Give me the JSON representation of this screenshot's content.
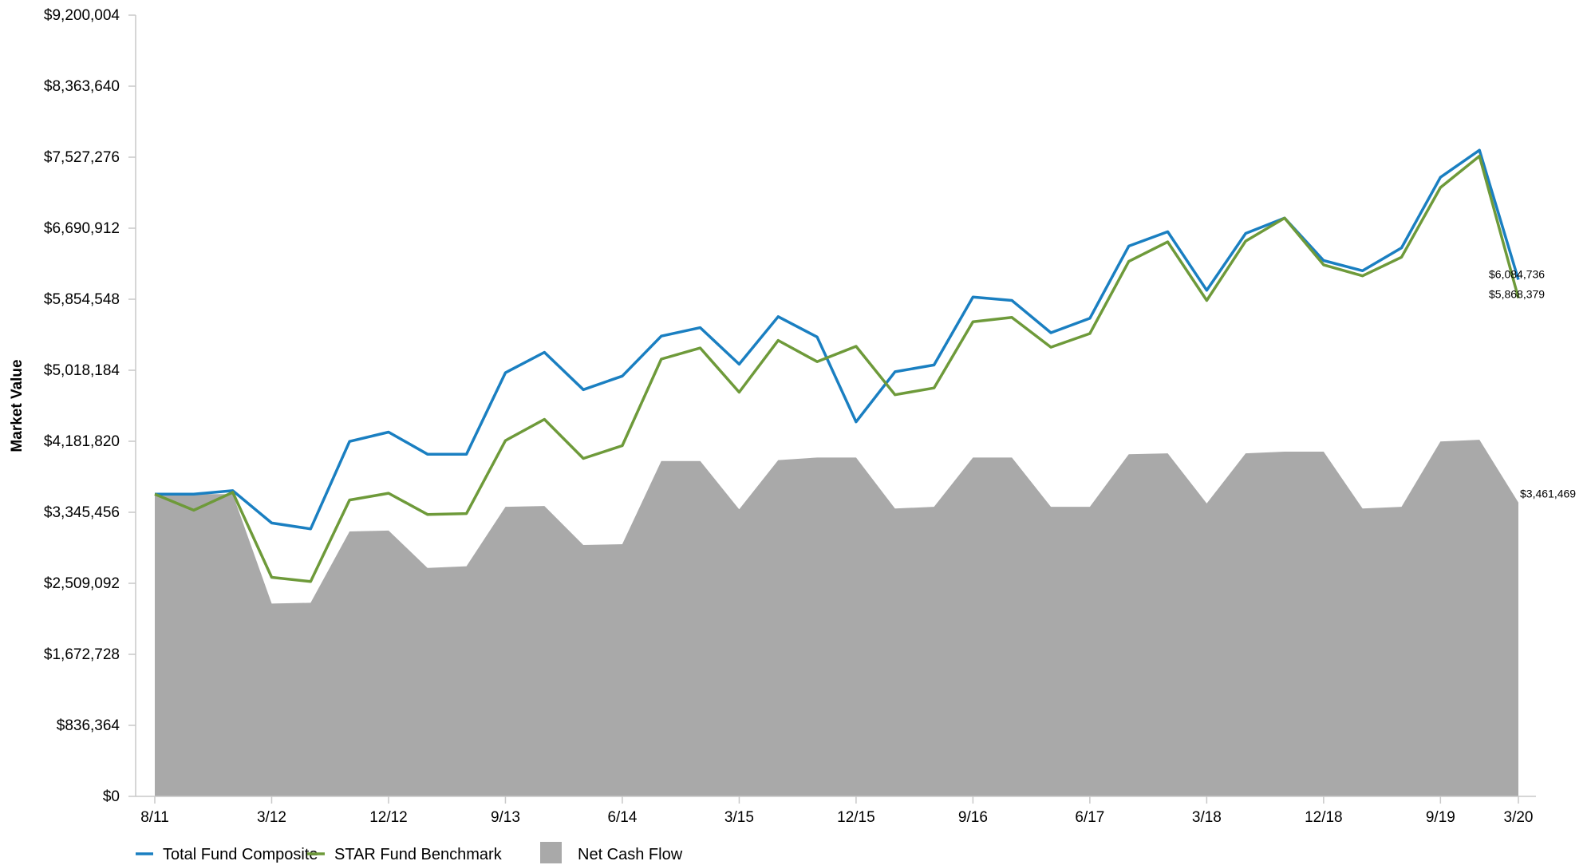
{
  "chart_data": {
    "type": "line",
    "ylabel": "Market Value",
    "xlabel": "",
    "ylim": [
      0,
      9200004
    ],
    "y_ticks": [
      0,
      836364,
      1672728,
      2509092,
      3345456,
      4181820,
      5018184,
      5854548,
      6690912,
      7527276,
      8363640,
      9200004
    ],
    "y_tick_labels": [
      "$0",
      "$836,364",
      "$1,672,728",
      "$2,509,092",
      "$3,345,456",
      "$4,181,820",
      "$5,018,184",
      "$5,854,548",
      "$6,690,912",
      "$7,527,276",
      "$8,363,640",
      "$9,200,004"
    ],
    "x_tick_labels": [
      "8/11",
      "3/12",
      "12/12",
      "9/13",
      "6/14",
      "3/15",
      "12/15",
      "9/16",
      "6/17",
      "3/18",
      "12/18",
      "9/19",
      "3/20"
    ],
    "x_tick_positions": [
      0,
      3,
      6,
      9,
      12,
      15,
      18,
      21,
      24,
      27,
      30,
      33,
      35
    ],
    "x_count": 36,
    "series": [
      {
        "name": "Total Fund Composite",
        "kind": "line",
        "color": "#1a7fc1",
        "values": [
          3560000,
          3560000,
          3600000,
          3220000,
          3150000,
          4180000,
          4290000,
          4030000,
          4030000,
          4990000,
          5230000,
          4790000,
          4950000,
          5420000,
          5520000,
          5090000,
          5650000,
          5410000,
          4410000,
          5000000,
          5080000,
          5880000,
          5840000,
          5460000,
          5630000,
          6480000,
          6650000,
          5960000,
          6630000,
          6810000,
          6310000,
          6190000,
          6460000,
          7290000,
          7610000,
          6084736
        ],
        "end_label": "$6,084,736"
      },
      {
        "name": "STAR Fund Benchmark",
        "kind": "line",
        "color": "#6e9a3a",
        "values": [
          3560000,
          3370000,
          3580000,
          2580000,
          2530000,
          3490000,
          3570000,
          3320000,
          3330000,
          4190000,
          4440000,
          3980000,
          4130000,
          5150000,
          5280000,
          4760000,
          5370000,
          5120000,
          5300000,
          4730000,
          4810000,
          5590000,
          5640000,
          5290000,
          5450000,
          6300000,
          6530000,
          5840000,
          6540000,
          6810000,
          6260000,
          6130000,
          6350000,
          7170000,
          7540000,
          5868379
        ],
        "end_label": "$5,868,379"
      },
      {
        "name": "Net Cash Flow",
        "kind": "area",
        "color": "#a9a9a9",
        "values": [
          3560000,
          3560000,
          3560000,
          2270000,
          2280000,
          3120000,
          3130000,
          2690000,
          2710000,
          3410000,
          3420000,
          2960000,
          2970000,
          3950000,
          3950000,
          3380000,
          3960000,
          3990000,
          3990000,
          3390000,
          3410000,
          3990000,
          3990000,
          3410000,
          3410000,
          4030000,
          4040000,
          3450000,
          4040000,
          4060000,
          4060000,
          3390000,
          3410000,
          4180000,
          4200000,
          3461469
        ],
        "end_label": "$3,461,469"
      }
    ],
    "legend": {
      "position": "bottom-left",
      "items": [
        {
          "label": "Total Fund Composite",
          "swatch": "line",
          "color": "#1a7fc1"
        },
        {
          "label": "STAR Fund Benchmark",
          "swatch": "line",
          "color": "#6e9a3a"
        },
        {
          "label": "Net Cash Flow",
          "swatch": "box",
          "color": "#a9a9a9"
        }
      ]
    },
    "grid": false
  }
}
